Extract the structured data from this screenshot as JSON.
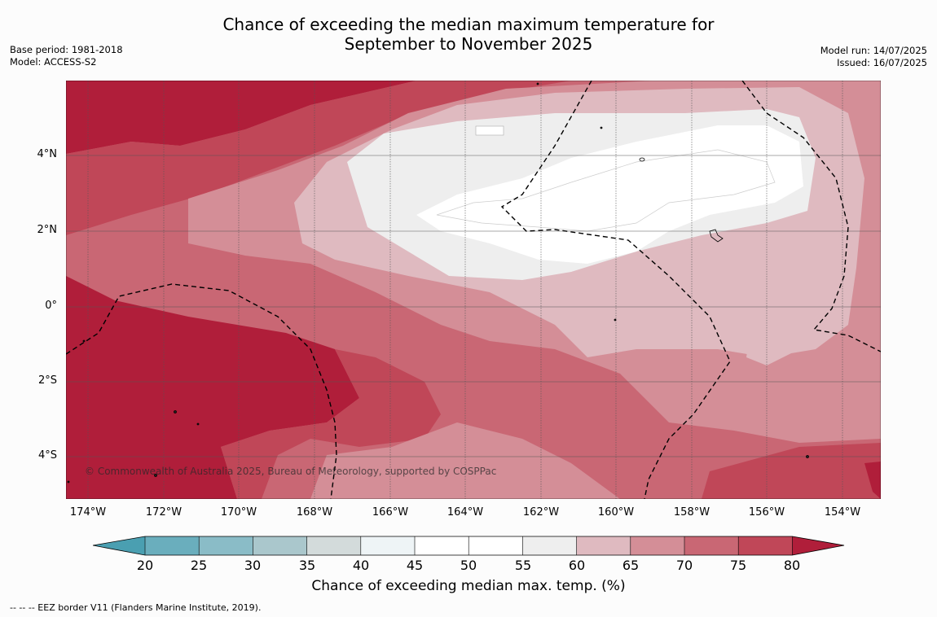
{
  "title_line1": "Chance of exceeding the median maximum temperature for",
  "title_line2": "September to November 2025",
  "meta_left": {
    "base_period": "Base period: 1981-2018",
    "model": "Model: ACCESS-S2"
  },
  "meta_right": {
    "model_run": "Model run: 14/07/2025",
    "issued": "Issued: 16/07/2025"
  },
  "map": {
    "lat_labels": [
      "4°N",
      "2°N",
      "0°",
      "2°S",
      "4°S"
    ],
    "lon_labels": [
      "174°W",
      "172°W",
      "170°W",
      "168°W",
      "166°W",
      "164°W",
      "162°W",
      "160°W",
      "158°W",
      "156°W",
      "154°W"
    ],
    "copyright": "© Commonwealth of Australia 2025, Bureau of Meteorology, supported by COSPPac"
  },
  "colorbar": {
    "ticks": [
      "20",
      "25",
      "30",
      "35",
      "40",
      "45",
      "50",
      "55",
      "60",
      "65",
      "70",
      "75",
      "80"
    ],
    "colors": {
      "below_20": "#4a9fb1",
      "20_25": "#6aaebd",
      "25_30": "#8abcc7",
      "30_35": "#aac7cc",
      "35_40": "#d3dbdb",
      "40_45": "#eef4f6",
      "45_55": "#ffffff",
      "55_60": "#eeeeee",
      "60_65": "#dfbac0",
      "65_70": "#d48e97",
      "70_75": "#c96774",
      "75_80": "#c04758",
      "above_80": "#b01e3a"
    },
    "label": "Chance of exceeding median max. temp. (%)"
  },
  "footer": "--  --  -- EEZ border V11 (Flanders Marine Institute, 2019)."
}
